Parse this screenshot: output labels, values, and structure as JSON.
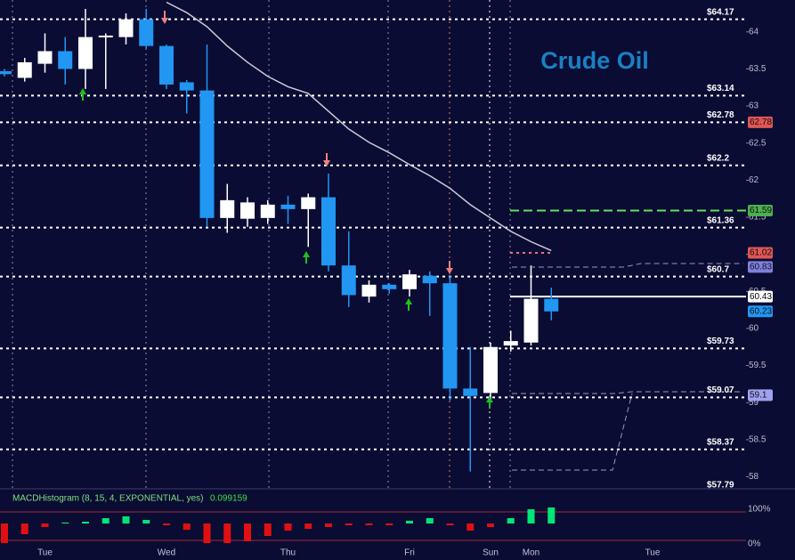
{
  "chart_data": {
    "type": "candlestick",
    "title": "Crude Oil",
    "open": [
      63.47,
      63.38,
      63.57,
      63.74,
      63.5,
      63.93,
      63.93,
      64.17,
      63.81,
      63.32,
      63.21,
      61.49,
      61.48,
      61.49,
      61.67,
      61.61,
      61.77,
      60.85,
      60.43,
      60.59,
      60.53,
      60.71,
      60.61,
      59.19,
      59.13,
      59.77,
      59.81,
      60.4
    ],
    "high": [
      63.5,
      63.65,
      63.98,
      63.93,
      64.31,
      63.98,
      64.25,
      64.31,
      63.83,
      63.35,
      63.83,
      61.95,
      61.77,
      61.73,
      61.79,
      61.82,
      62.09,
      61.31,
      60.65,
      60.61,
      60.79,
      60.77,
      60.71,
      59.75,
      59.81,
      59.97,
      60.85,
      60.55
    ],
    "low": [
      63.4,
      63.33,
      63.45,
      63.29,
      63.23,
      63.23,
      63.83,
      63.77,
      63.23,
      62.9,
      61.37,
      61.29,
      61.37,
      61.41,
      61.41,
      61.1,
      60.77,
      60.29,
      60.35,
      60.47,
      60.43,
      60.17,
      59.03,
      58.07,
      59.01,
      59.69,
      59.77,
      60.11
    ],
    "close": [
      63.43,
      63.59,
      63.74,
      63.5,
      63.93,
      63.95,
      64.17,
      63.81,
      63.29,
      63.21,
      61.49,
      61.73,
      61.7,
      61.67,
      61.61,
      61.77,
      60.85,
      60.45,
      60.59,
      60.53,
      60.73,
      60.61,
      59.19,
      59.09,
      59.75,
      59.83,
      60.4,
      60.23
    ],
    "up_color": "#ffffff",
    "down_color": "#2196f3",
    "moving_average": {
      "color": "#c8ccd8",
      "values": [
        null,
        null,
        null,
        null,
        null,
        null,
        null,
        null,
        64.4,
        64.26,
        64.07,
        63.81,
        63.59,
        63.4,
        63.26,
        63.17,
        62.93,
        62.69,
        62.51,
        62.37,
        62.21,
        62.06,
        61.89,
        61.67,
        61.49,
        61.31,
        61.17,
        61.05
      ]
    },
    "session_labels": [
      {
        "label": "Tue",
        "index": 2
      },
      {
        "label": "Wed",
        "index": 8
      },
      {
        "label": "Thu",
        "index": 14
      },
      {
        "label": "Fri",
        "index": 20
      },
      {
        "label": "Sun",
        "index": 24
      },
      {
        "label": "Mon",
        "index": 26
      },
      {
        "label": "Tue",
        "index": 32
      }
    ],
    "ylim": [
      57.85,
      64.43
    ],
    "yticks": [
      58,
      58.5,
      59,
      59.5,
      60,
      60.5,
      61,
      61.5,
      62,
      62.5,
      63,
      63.5,
      64
    ],
    "levels": [
      {
        "value": 64.17,
        "label": "$64.17"
      },
      {
        "value": 63.14,
        "label": "$63.14"
      },
      {
        "value": 62.78,
        "label": "$62.78"
      },
      {
        "value": 62.2,
        "label": "$62.2"
      },
      {
        "value": 61.36,
        "label": "$61.36"
      },
      {
        "value": 60.7,
        "label": "$60.7"
      },
      {
        "value": 59.73,
        "label": "$59.73"
      },
      {
        "value": 59.07,
        "label": "$59.07"
      },
      {
        "value": 58.37,
        "label": "$58.37"
      },
      {
        "value": 57.79,
        "label": "$57.79"
      }
    ],
    "badges": [
      {
        "value": 62.78,
        "color": "#e05555"
      },
      {
        "value": 61.59,
        "color": "#4caf50"
      },
      {
        "value": 61.02,
        "color": "#e05555"
      },
      {
        "value": 60.83,
        "color": "#8080e0"
      },
      {
        "value": 60.43,
        "color": "#ffffff"
      },
      {
        "value": 60.23,
        "color": "#2196f3"
      },
      {
        "value": 59.1,
        "color": "#a0a0f0"
      }
    ],
    "macd": {
      "label": "MACDHistogram (8, 15, 4, EXPONENTIAL, yes)",
      "values": [
        -0.121,
        -0.066,
        -0.022,
        0.006,
        0.011,
        0.033,
        0.044,
        0.022,
        -0.011,
        -0.039,
        -0.121,
        -0.121,
        -0.11,
        -0.077,
        -0.044,
        -0.033,
        -0.022,
        -0.011,
        -0.011,
        -0.011,
        0.017,
        0.033,
        -0.011,
        -0.044,
        -0.022,
        0.033,
        0.088,
        0.099159
      ],
      "ylim": [
        -0.132,
        0.121
      ],
      "up_color": "#00e676",
      "down_color": "#e01010",
      "scale_labels": [
        "100%",
        "0%"
      ]
    }
  }
}
